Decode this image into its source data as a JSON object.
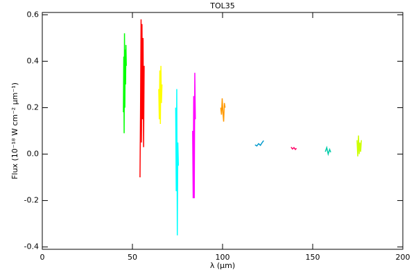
{
  "chart_data": {
    "type": "line",
    "title": "TOL35",
    "x_label": "λ (μm)",
    "y_label": "Flux (10⁻¹⁸ W cm⁻² μm⁻¹)",
    "xlim": [
      0,
      200
    ],
    "ylim": [
      -0.41,
      0.61
    ],
    "xticks": [
      0,
      50,
      100,
      150,
      200
    ],
    "yticks": [
      -0.4,
      -0.2,
      {
        "value": 0,
        "label": "0.0"
      },
      0.2,
      0.4,
      0.6
    ],
    "series": [
      {
        "color": "#00ff00",
        "x": [
          45.0,
          45.2,
          45.4,
          45.6,
          45.8,
          46.0,
          46.2,
          46.4,
          46.6
        ],
        "values": [
          0.18,
          0.42,
          0.09,
          0.52,
          0.2,
          0.45,
          0.3,
          0.47,
          0.38
        ]
      },
      {
        "color": "#ff0000",
        "x": [
          54.2,
          54.5,
          54.8,
          55.0,
          55.3,
          55.6,
          55.9,
          56.2,
          56.5
        ],
        "values": [
          -0.1,
          0.2,
          0.58,
          0.05,
          0.56,
          0.15,
          0.5,
          0.03,
          0.38
        ]
      },
      {
        "color": "#ffff00",
        "x": [
          64.6,
          64.9,
          65.2,
          65.5,
          65.8,
          66.1,
          66.4
        ],
        "values": [
          0.28,
          0.15,
          0.36,
          0.13,
          0.38,
          0.22,
          0.3
        ]
      },
      {
        "color": "#00ffff",
        "x": [
          74.0,
          74.3,
          74.6,
          74.9,
          75.2,
          75.5
        ],
        "values": [
          0.2,
          -0.16,
          0.28,
          -0.35,
          0.05,
          -0.05
        ]
      },
      {
        "color": "#ff00ff",
        "x": [
          83.4,
          83.7,
          84.0,
          84.3,
          84.6,
          84.9
        ],
        "values": [
          0.1,
          -0.19,
          0.25,
          -0.19,
          0.35,
          0.15
        ]
      },
      {
        "color": "#ff9900",
        "x": [
          99.0,
          99.4,
          99.8,
          100.2,
          100.6,
          101.0,
          101.4
        ],
        "values": [
          0.2,
          0.17,
          0.24,
          0.18,
          0.14,
          0.22,
          0.2
        ]
      },
      {
        "color": "#0099cc",
        "x": [
          118.0,
          119.0,
          120.0,
          121.0,
          122.0,
          122.8
        ],
        "values": [
          0.04,
          0.035,
          0.045,
          0.038,
          0.05,
          0.058
        ]
      },
      {
        "color": "#ff0066",
        "x": [
          138.0,
          138.8,
          139.6,
          140.4,
          141.0
        ],
        "values": [
          0.03,
          0.022,
          0.028,
          0.02,
          0.025
        ]
      },
      {
        "color": "#00ccaa",
        "x": [
          157.0,
          157.8,
          158.6,
          159.4,
          160.0
        ],
        "values": [
          0.01,
          0.028,
          0.0,
          0.02,
          0.008
        ]
      },
      {
        "color": "#ccff00",
        "x": [
          174.6,
          175.0,
          175.4,
          175.8,
          176.2,
          176.6,
          177.0
        ],
        "values": [
          0.06,
          -0.01,
          0.08,
          0.0,
          0.05,
          0.01,
          0.06
        ]
      }
    ]
  }
}
